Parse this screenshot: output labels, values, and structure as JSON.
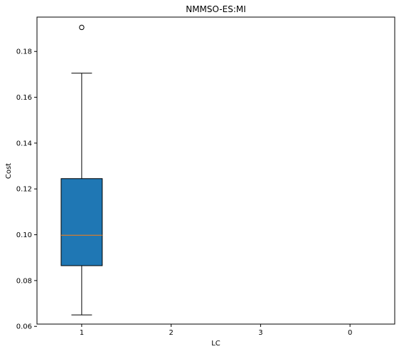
{
  "chart_data": {
    "type": "box",
    "title": "NMMSO-ES:MI",
    "xlabel": "LC",
    "ylabel": "Cost",
    "categories": [
      "1",
      "2",
      "3",
      "0"
    ],
    "ylim": [
      0.061,
      0.195
    ],
    "yticks": [
      0.06,
      0.08,
      0.1,
      0.12,
      0.14,
      0.16,
      0.18
    ],
    "ytick_labels": [
      "0.06",
      "0.08",
      "0.10",
      "0.12",
      "0.14",
      "0.16",
      "0.18"
    ],
    "boxes": [
      {
        "category": "1",
        "whisker_low": 0.065,
        "q1": 0.0865,
        "median": 0.0998,
        "q3": 0.1245,
        "whisker_high": 0.1705,
        "outliers": [
          0.1905
        ]
      }
    ],
    "colors": {
      "box_fill": "#1f77b4",
      "median_line": "#ff7f0e",
      "edge": "#000000"
    },
    "grid": false,
    "legend": "none"
  }
}
